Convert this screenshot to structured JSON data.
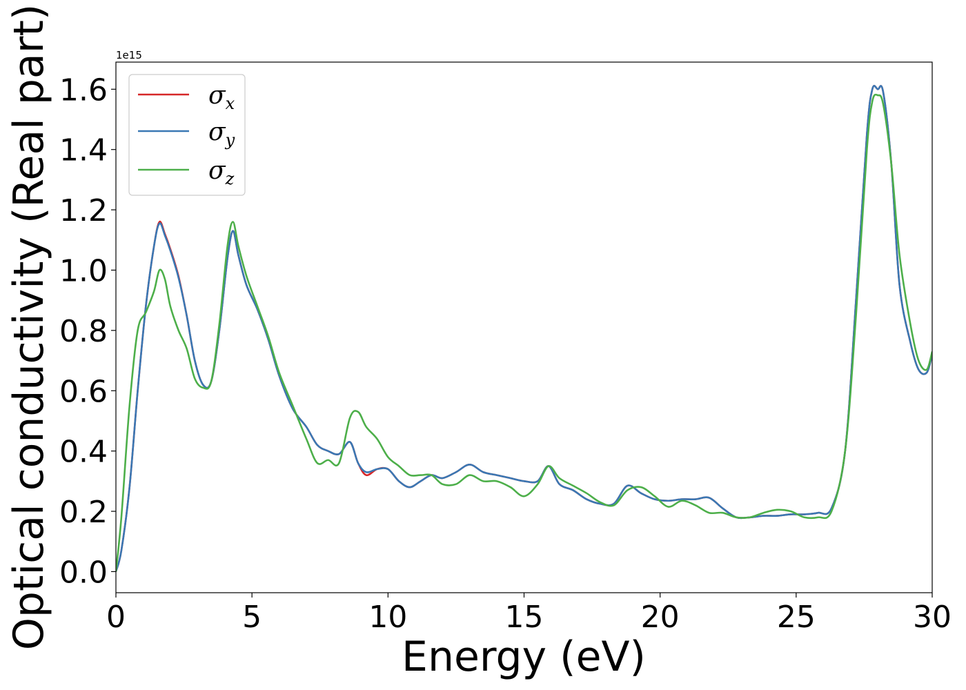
{
  "chart_data": {
    "type": "line",
    "title": "",
    "xlabel": "Energy (eV)",
    "ylabel": "Optical conductivity (Real part)",
    "y_offset_label": "1e15",
    "xlim": [
      0,
      30
    ],
    "ylim": [
      -0.07,
      1.69
    ],
    "grid": false,
    "legend_position": "top-left",
    "x_ticks": [
      0,
      5,
      10,
      15,
      20,
      25,
      30
    ],
    "x_tick_labels": [
      "0",
      "5",
      "10",
      "15",
      "20",
      "25",
      "30"
    ],
    "y_ticks": [
      0.0,
      0.2,
      0.4,
      0.6,
      0.8,
      1.0,
      1.2,
      1.4,
      1.6
    ],
    "y_tick_labels": [
      "0.0",
      "0.2",
      "0.4",
      "0.6",
      "0.8",
      "1.0",
      "1.2",
      "1.4",
      "1.6"
    ],
    "series": [
      {
        "name": "σx",
        "sym": "σ",
        "sub": "x",
        "color": "#d62728",
        "x": [
          0,
          0.2,
          0.5,
          0.8,
          1.1,
          1.4,
          1.6,
          1.8,
          2.0,
          2.3,
          2.6,
          2.9,
          3.2,
          3.5,
          3.8,
          4.1,
          4.3,
          4.5,
          4.8,
          5.2,
          5.6,
          6.0,
          6.5,
          7.0,
          7.4,
          7.8,
          8.2,
          8.6,
          8.9,
          9.2,
          9.6,
          10.0,
          10.4,
          10.8,
          11.2,
          11.6,
          12.0,
          12.5,
          13.0,
          13.5,
          14.0,
          14.5,
          15.0,
          15.5,
          15.9,
          16.3,
          16.8,
          17.3,
          17.8,
          18.3,
          18.8,
          19.3,
          19.8,
          20.3,
          20.8,
          21.3,
          21.8,
          22.3,
          22.8,
          23.3,
          23.8,
          24.3,
          24.8,
          25.3,
          25.8,
          26.3,
          26.8,
          27.2,
          27.6,
          27.8,
          28.0,
          28.2,
          28.5,
          28.8,
          29.2,
          29.5,
          29.8,
          30.0
        ],
        "values": [
          0.0,
          0.07,
          0.28,
          0.6,
          0.88,
          1.08,
          1.16,
          1.12,
          1.07,
          0.98,
          0.85,
          0.7,
          0.62,
          0.63,
          0.8,
          1.04,
          1.13,
          1.05,
          0.95,
          0.87,
          0.77,
          0.65,
          0.54,
          0.48,
          0.42,
          0.4,
          0.39,
          0.43,
          0.36,
          0.32,
          0.34,
          0.34,
          0.3,
          0.28,
          0.3,
          0.32,
          0.31,
          0.33,
          0.355,
          0.33,
          0.32,
          0.31,
          0.3,
          0.3,
          0.35,
          0.29,
          0.27,
          0.24,
          0.225,
          0.225,
          0.285,
          0.26,
          0.24,
          0.235,
          0.24,
          0.24,
          0.245,
          0.21,
          0.18,
          0.18,
          0.185,
          0.185,
          0.19,
          0.19,
          0.195,
          0.21,
          0.4,
          0.9,
          1.45,
          1.6,
          1.6,
          1.59,
          1.35,
          0.95,
          0.76,
          0.67,
          0.66,
          0.72
        ]
      },
      {
        "name": "σy",
        "sym": "σ",
        "sub": "y",
        "color": "#3a78b4",
        "x": [
          0,
          0.2,
          0.5,
          0.8,
          1.1,
          1.4,
          1.6,
          1.8,
          2.0,
          2.3,
          2.6,
          2.9,
          3.2,
          3.5,
          3.8,
          4.1,
          4.3,
          4.5,
          4.8,
          5.2,
          5.6,
          6.0,
          6.5,
          7.0,
          7.4,
          7.8,
          8.2,
          8.6,
          8.9,
          9.2,
          9.6,
          10.0,
          10.4,
          10.8,
          11.2,
          11.6,
          12.0,
          12.5,
          13.0,
          13.5,
          14.0,
          14.5,
          15.0,
          15.5,
          15.9,
          16.3,
          16.8,
          17.3,
          17.8,
          18.3,
          18.8,
          19.3,
          19.8,
          20.3,
          20.8,
          21.3,
          21.8,
          22.3,
          22.8,
          23.3,
          23.8,
          24.3,
          24.8,
          25.3,
          25.8,
          26.3,
          26.8,
          27.2,
          27.6,
          27.8,
          28.0,
          28.2,
          28.5,
          28.8,
          29.2,
          29.5,
          29.8,
          30.0
        ],
        "values": [
          0.0,
          0.07,
          0.28,
          0.6,
          0.88,
          1.08,
          1.155,
          1.115,
          1.065,
          0.975,
          0.85,
          0.7,
          0.62,
          0.63,
          0.8,
          1.04,
          1.13,
          1.05,
          0.95,
          0.87,
          0.77,
          0.65,
          0.54,
          0.48,
          0.42,
          0.4,
          0.39,
          0.43,
          0.36,
          0.33,
          0.34,
          0.34,
          0.3,
          0.28,
          0.3,
          0.32,
          0.31,
          0.33,
          0.355,
          0.33,
          0.32,
          0.31,
          0.3,
          0.3,
          0.35,
          0.29,
          0.27,
          0.24,
          0.225,
          0.225,
          0.285,
          0.26,
          0.24,
          0.235,
          0.24,
          0.24,
          0.245,
          0.21,
          0.18,
          0.18,
          0.185,
          0.185,
          0.19,
          0.19,
          0.195,
          0.21,
          0.4,
          0.9,
          1.45,
          1.6,
          1.6,
          1.59,
          1.35,
          0.95,
          0.76,
          0.67,
          0.66,
          0.72
        ]
      },
      {
        "name": "σz",
        "sym": "σ",
        "sub": "z",
        "color": "#4daf4a",
        "x": [
          0,
          0.2,
          0.5,
          0.8,
          1.1,
          1.4,
          1.6,
          1.8,
          2.0,
          2.3,
          2.6,
          2.9,
          3.2,
          3.5,
          3.8,
          4.1,
          4.3,
          4.5,
          4.8,
          5.2,
          5.6,
          6.0,
          6.5,
          7.0,
          7.4,
          7.8,
          8.2,
          8.6,
          8.9,
          9.2,
          9.6,
          10.0,
          10.4,
          10.8,
          11.2,
          11.6,
          12.0,
          12.5,
          13.0,
          13.5,
          14.0,
          14.5,
          15.0,
          15.5,
          15.9,
          16.3,
          16.8,
          17.3,
          17.8,
          18.3,
          18.8,
          19.3,
          19.8,
          20.3,
          20.8,
          21.3,
          21.8,
          22.3,
          22.8,
          23.3,
          23.8,
          24.3,
          24.8,
          25.3,
          25.8,
          26.3,
          26.8,
          27.2,
          27.6,
          27.8,
          28.0,
          28.2,
          28.5,
          28.8,
          29.2,
          29.5,
          29.8,
          30.0
        ],
        "values": [
          0.0,
          0.18,
          0.55,
          0.8,
          0.86,
          0.93,
          1.0,
          0.97,
          0.88,
          0.8,
          0.74,
          0.64,
          0.61,
          0.63,
          0.82,
          1.08,
          1.16,
          1.08,
          0.98,
          0.88,
          0.78,
          0.66,
          0.55,
          0.44,
          0.36,
          0.37,
          0.36,
          0.51,
          0.53,
          0.48,
          0.44,
          0.38,
          0.35,
          0.32,
          0.32,
          0.32,
          0.29,
          0.29,
          0.32,
          0.3,
          0.3,
          0.28,
          0.25,
          0.29,
          0.35,
          0.31,
          0.285,
          0.26,
          0.23,
          0.22,
          0.27,
          0.28,
          0.25,
          0.215,
          0.235,
          0.22,
          0.195,
          0.195,
          0.18,
          0.18,
          0.195,
          0.205,
          0.2,
          0.18,
          0.18,
          0.2,
          0.4,
          0.85,
          1.4,
          1.56,
          1.58,
          1.55,
          1.35,
          1.05,
          0.82,
          0.7,
          0.67,
          0.73
        ]
      }
    ]
  }
}
